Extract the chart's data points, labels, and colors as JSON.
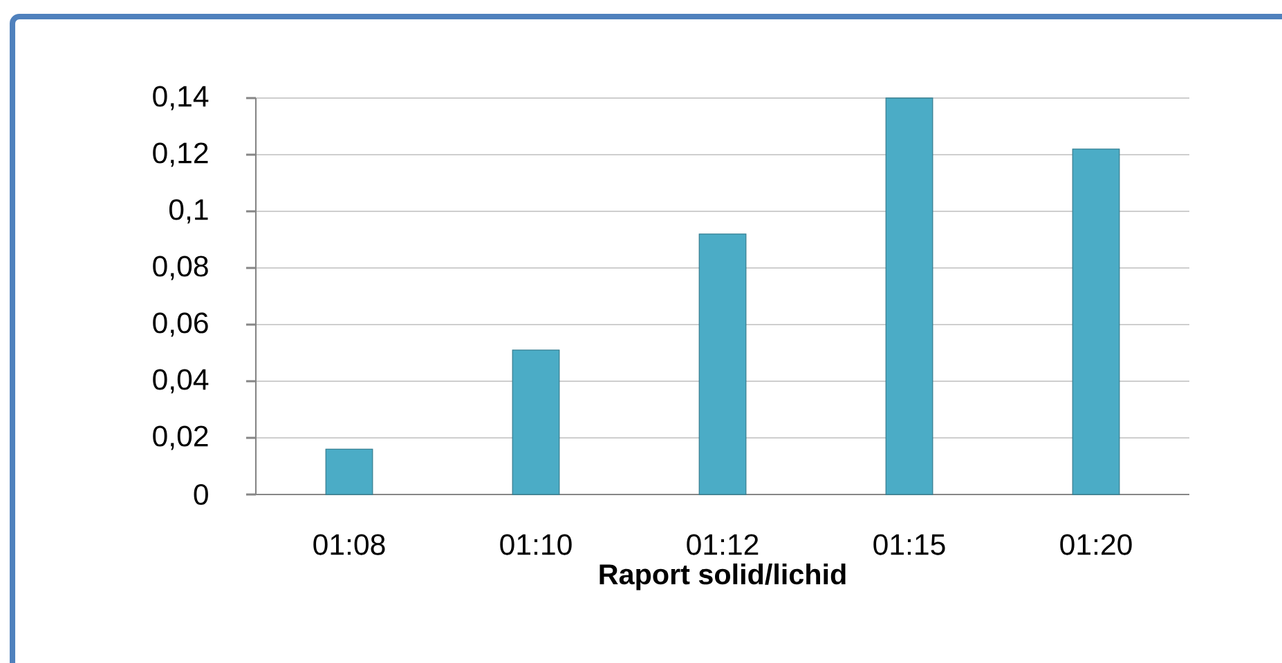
{
  "chart_data": {
    "type": "bar",
    "categories": [
      "01:08",
      "01:10",
      "01:12",
      "01:15",
      "01:20"
    ],
    "values": [
      0.016,
      0.051,
      0.092,
      0.14,
      0.122
    ],
    "color": "#4bacc6",
    "xlabel": "Raport solid/lichid",
    "ylim": [
      0,
      0.14
    ],
    "yticks": [
      0,
      {
        "value": 0.02,
        "label": "0,02"
      },
      {
        "value": 0.04,
        "label": "0,04"
      },
      {
        "value": 0.06,
        "label": "0,06"
      },
      {
        "value": 0.08,
        "label": "0,08"
      },
      {
        "value": 0.1,
        "label": "0,1"
      },
      {
        "value": 0.12,
        "label": "0,12"
      },
      {
        "value": 0.14,
        "label": "0,14"
      }
    ],
    "grid": "y"
  }
}
